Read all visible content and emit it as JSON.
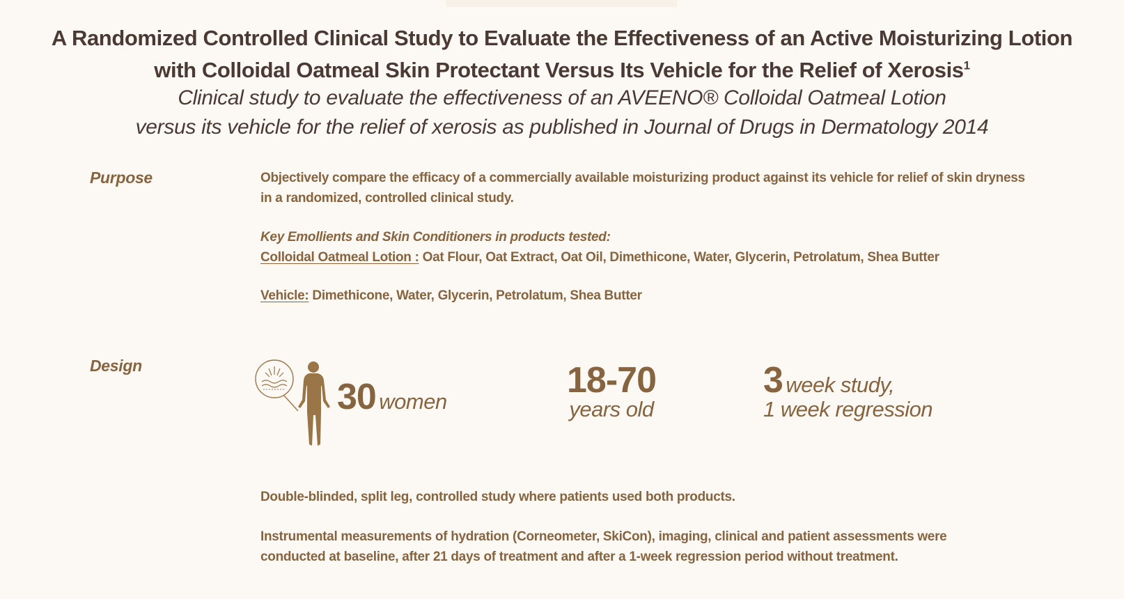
{
  "title": {
    "line1": "A Randomized Controlled Clinical Study to Evaluate the Effectiveness of an Active Moisturizing Lotion",
    "line2": "with Colloidal Oatmeal Skin Protectant Versus Its Vehicle for the Relief of Xerosis",
    "footnote": "1"
  },
  "subtitle": {
    "line1": "Clinical study to evaluate the effectiveness of an AVEENO® Colloidal Oatmeal Lotion",
    "line2": "versus its vehicle for the relief of xerosis as published in Journal of Drugs in Dermatology 2014"
  },
  "purpose": {
    "label": "Purpose",
    "text_line1": "Objectively compare the efficacy of a commercially available moisturizing product against its vehicle for relief of skin dryness",
    "text_line2": "in a randomized, controlled clinical study.",
    "key_heading": "Key Emollients and Skin Conditioners in products tested:",
    "lotion_label": "Colloidal Oatmeal Lotion :",
    "lotion_ingredients": "Oat Flour, Oat Extract, Oat Oil, Dimethicone, Water, Glycerin, Petrolatum, Shea Butter",
    "vehicle_label": "Vehicle:",
    "vehicle_ingredients": "Dimethicone, Water, Glycerin, Petrolatum, Shea Butter"
  },
  "design": {
    "label": "Design",
    "icon": "human-figure-skin-icon",
    "participants_number": "30",
    "participants_word": "women",
    "age_range": "18-70",
    "age_word": "years old",
    "study_number": "3",
    "study_word": "week study,",
    "regression_text": "1 week regression",
    "paragraph1": "Double-blinded, split leg, controlled study where patients used both products.",
    "paragraph2_line1": "Instrumental measurements of hydration (Corneometer, SkiCon), imaging, clinical and patient assessments were",
    "paragraph2_line2": "conducted at baseline, after 21 days of treatment and after a 1-week regression period without treatment."
  },
  "colors": {
    "background": "#fcf9f4",
    "title": "#4a3a33",
    "accent_brown": "#86643f",
    "figure": "#9a7548"
  }
}
